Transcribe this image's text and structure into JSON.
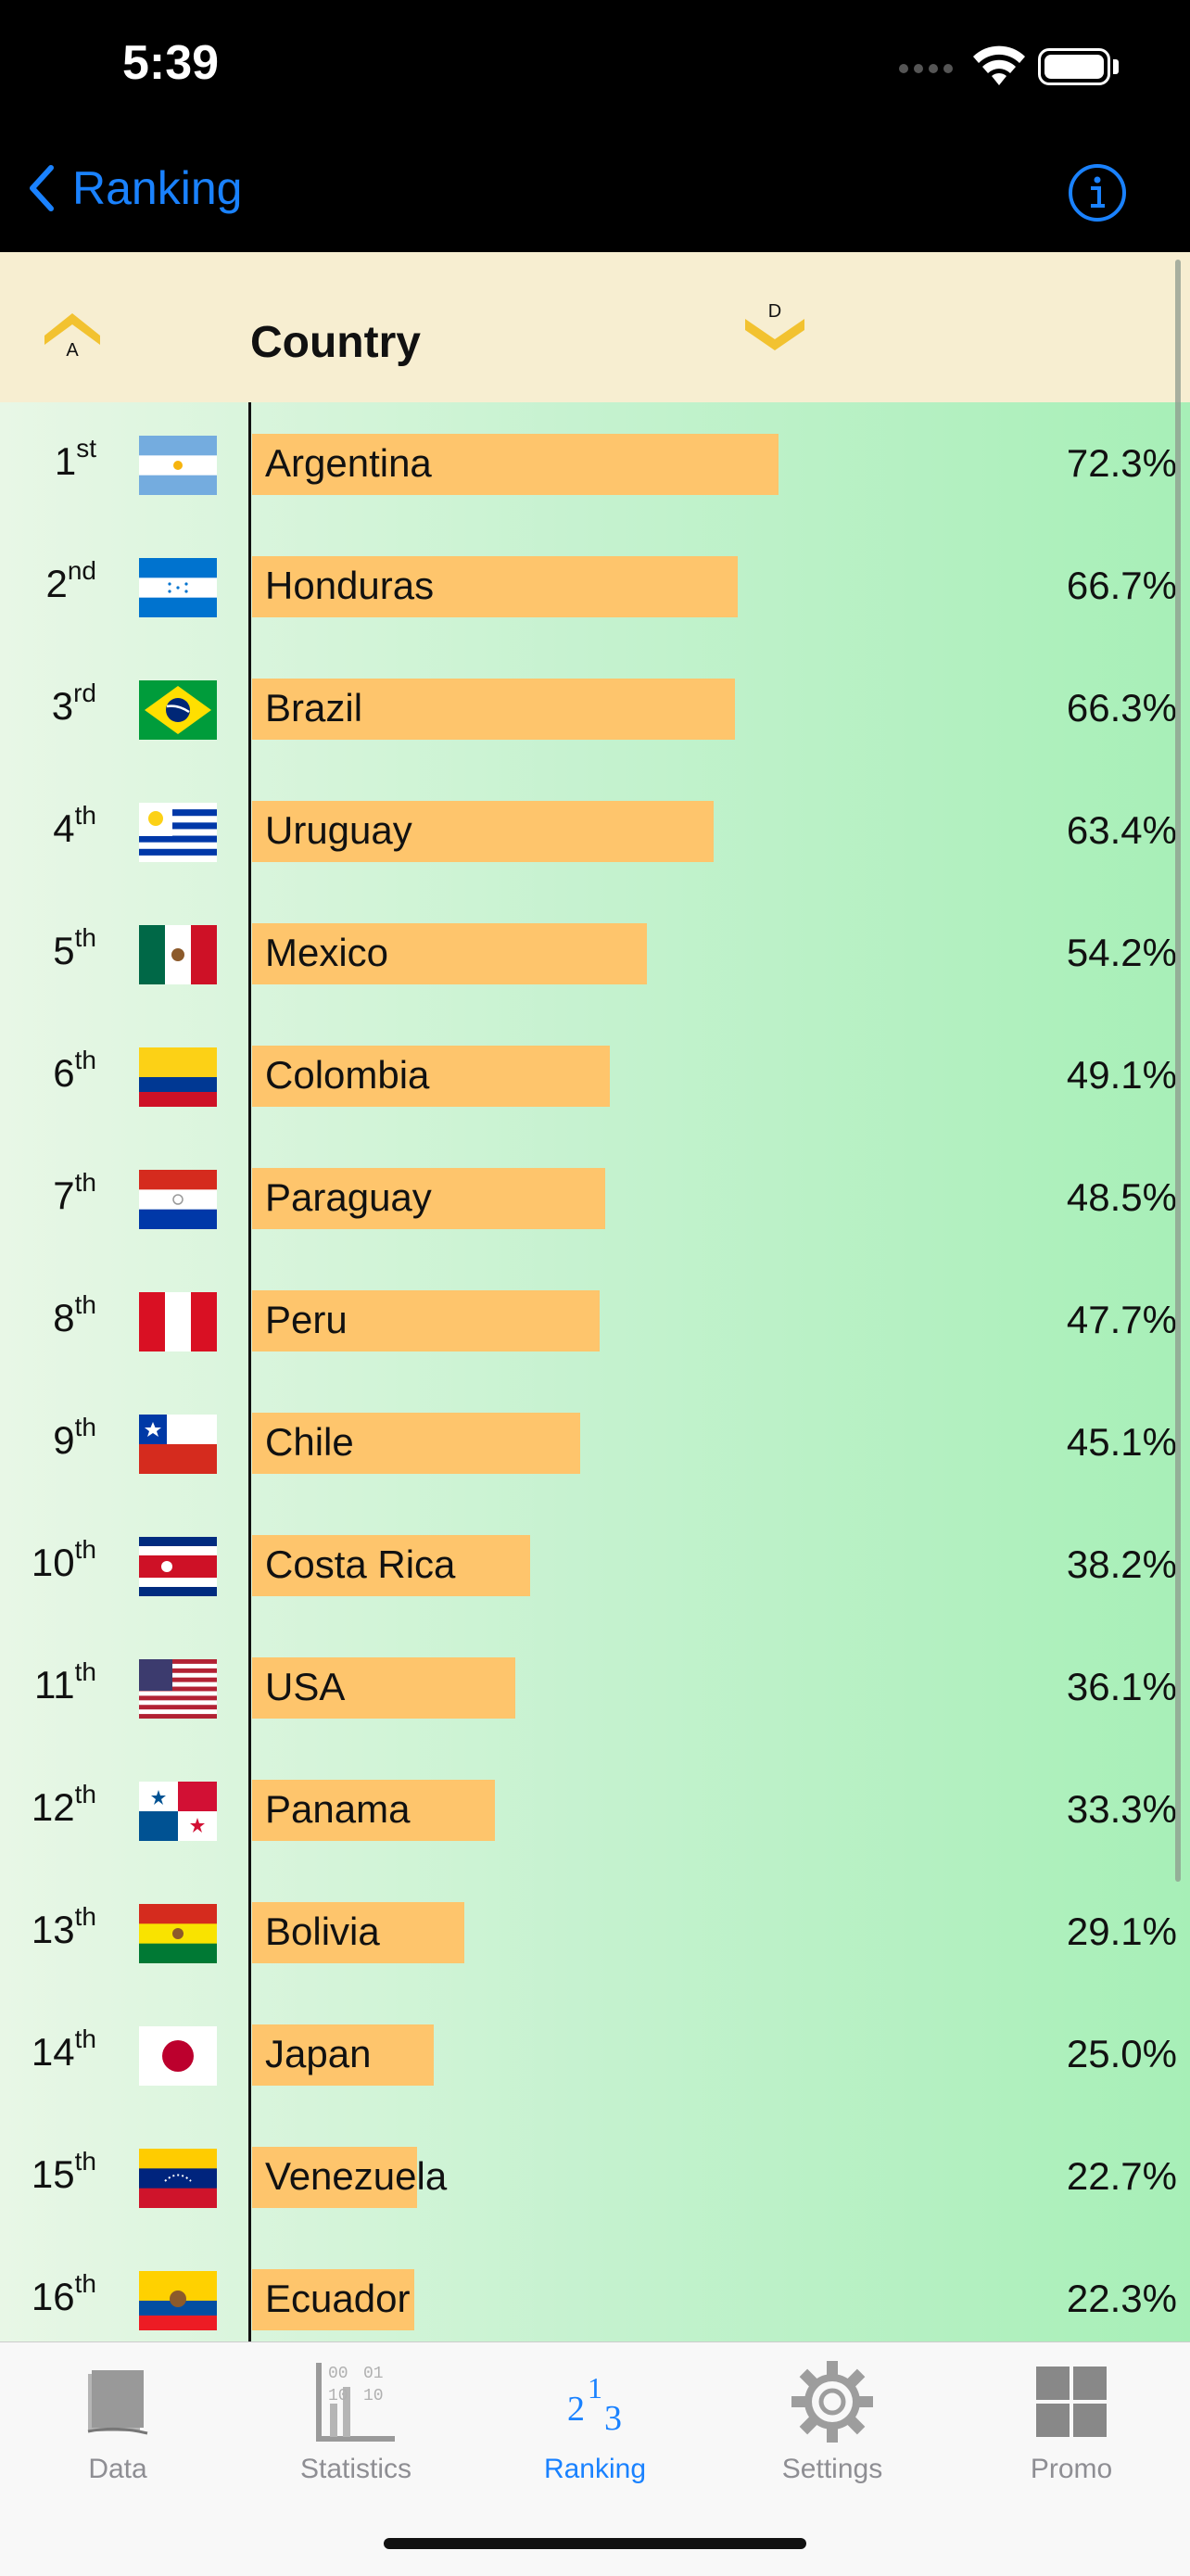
{
  "status_bar": {
    "time": "5:39"
  },
  "nav": {
    "back_label": "Ranking"
  },
  "table": {
    "sort_asc_label": "A",
    "sort_desc_label": "D",
    "column_title": "Country",
    "rows": [
      {
        "rank_num": "1",
        "rank_suffix": "st",
        "country": "Argentina",
        "percent": "72.3%",
        "flag": "argentina-flag-icon"
      },
      {
        "rank_num": "2",
        "rank_suffix": "nd",
        "country": "Honduras",
        "percent": "66.7%",
        "flag": "honduras-flag-icon"
      },
      {
        "rank_num": "3",
        "rank_suffix": "rd",
        "country": "Brazil",
        "percent": "66.3%",
        "flag": "brazil-flag-icon"
      },
      {
        "rank_num": "4",
        "rank_suffix": "th",
        "country": "Uruguay",
        "percent": "63.4%",
        "flag": "uruguay-flag-icon"
      },
      {
        "rank_num": "5",
        "rank_suffix": "th",
        "country": "Mexico",
        "percent": "54.2%",
        "flag": "mexico-flag-icon"
      },
      {
        "rank_num": "6",
        "rank_suffix": "th",
        "country": "Colombia",
        "percent": "49.1%",
        "flag": "colombia-flag-icon"
      },
      {
        "rank_num": "7",
        "rank_suffix": "th",
        "country": "Paraguay",
        "percent": "48.5%",
        "flag": "paraguay-flag-icon"
      },
      {
        "rank_num": "8",
        "rank_suffix": "th",
        "country": "Peru",
        "percent": "47.7%",
        "flag": "peru-flag-icon"
      },
      {
        "rank_num": "9",
        "rank_suffix": "th",
        "country": "Chile",
        "percent": "45.1%",
        "flag": "chile-flag-icon"
      },
      {
        "rank_num": "10",
        "rank_suffix": "th",
        "country": "Costa Rica",
        "percent": "38.2%",
        "flag": "costa-rica-flag-icon"
      },
      {
        "rank_num": "11",
        "rank_suffix": "th",
        "country": "USA",
        "percent": "36.1%",
        "flag": "usa-flag-icon"
      },
      {
        "rank_num": "12",
        "rank_suffix": "th",
        "country": "Panama",
        "percent": "33.3%",
        "flag": "panama-flag-icon"
      },
      {
        "rank_num": "13",
        "rank_suffix": "th",
        "country": "Bolivia",
        "percent": "29.1%",
        "flag": "bolivia-flag-icon"
      },
      {
        "rank_num": "14",
        "rank_suffix": "th",
        "country": "Japan",
        "percent": "25.0%",
        "flag": "japan-flag-icon"
      },
      {
        "rank_num": "15",
        "rank_suffix": "th",
        "country": "Venezuela",
        "percent": "22.7%",
        "flag": "venezuela-flag-icon"
      },
      {
        "rank_num": "16",
        "rank_suffix": "th",
        "country": "Ecuador",
        "percent": "22.3%",
        "flag": "ecuador-flag-icon"
      }
    ]
  },
  "tabs": [
    {
      "label": "Data",
      "icon": "data-icon",
      "active": false
    },
    {
      "label": "Statistics",
      "icon": "statistics-icon",
      "active": false
    },
    {
      "label": "Ranking",
      "icon": "ranking-icon",
      "active": true
    },
    {
      "label": "Settings",
      "icon": "gear-icon",
      "active": false
    },
    {
      "label": "Promo",
      "icon": "grid-icon",
      "active": false
    }
  ],
  "stats_icon_digits": [
    "00",
    "01",
    "10",
    "10"
  ],
  "ranking_icon_digits": [
    "2",
    "1",
    "3"
  ],
  "colors": {
    "accent": "#1a82ff",
    "bar": "#fec56c",
    "header_bg": "#f7eed1"
  }
}
